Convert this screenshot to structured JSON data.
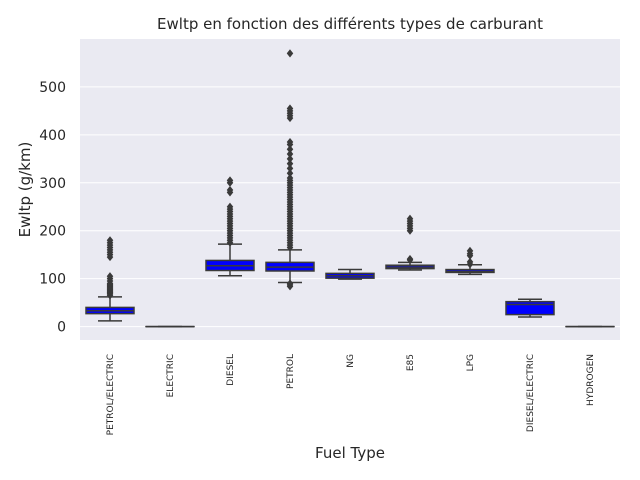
{
  "chart_data": {
    "type": "box",
    "title": "Ewltp en fonction des différents types de carburant",
    "xlabel": "Fuel Type",
    "ylabel": "Ewltp (g/km)",
    "ylim": [
      -28,
      600
    ],
    "yticks": [
      0,
      100,
      200,
      300,
      400,
      500
    ],
    "grid": true,
    "box_color": "#0000ff",
    "line_color": "#3a3a3a",
    "background": "#eaeaf2",
    "categories": [
      "PETROL/ELECTRIC",
      "ELECTRIC",
      "DIESEL",
      "PETROL",
      "NG",
      "E85",
      "LPG",
      "DIESEL/ELECTRIC",
      "HYDROGEN"
    ],
    "boxes": [
      {
        "category": "PETROL/ELECTRIC",
        "whislo": 12,
        "q1": 27,
        "med": 33,
        "q3": 40,
        "whishi": 62,
        "fliers": [
          65,
          68,
          70,
          72,
          74,
          76,
          78,
          80,
          82,
          84,
          86,
          88,
          90,
          95,
          100,
          105,
          145,
          150,
          155,
          160,
          165,
          170,
          175,
          180
        ]
      },
      {
        "category": "ELECTRIC",
        "whislo": 0,
        "q1": 0,
        "med": 0,
        "q3": 0,
        "whishi": 0,
        "fliers": []
      },
      {
        "category": "DIESEL",
        "whislo": 106,
        "q1": 117,
        "med": 127,
        "q3": 138,
        "whishi": 172,
        "fliers": [
          175,
          180,
          185,
          190,
          195,
          200,
          205,
          210,
          215,
          220,
          225,
          230,
          235,
          240,
          245,
          250,
          280,
          285,
          300,
          305
        ]
      },
      {
        "category": "PETROL",
        "whislo": 92,
        "q1": 116,
        "med": 124,
        "q3": 134,
        "whishi": 160,
        "fliers": [
          84,
          87,
          90,
          165,
          170,
          175,
          180,
          185,
          190,
          195,
          200,
          205,
          210,
          215,
          220,
          225,
          230,
          235,
          240,
          245,
          250,
          255,
          260,
          265,
          270,
          275,
          280,
          285,
          290,
          295,
          300,
          305,
          310,
          320,
          330,
          340,
          350,
          360,
          370,
          380,
          385,
          435,
          440,
          445,
          450,
          455,
          570
        ]
      },
      {
        "category": "NG",
        "whislo": 99,
        "q1": 101,
        "med": 106,
        "q3": 111,
        "whishi": 119,
        "fliers": []
      },
      {
        "category": "E85",
        "whislo": 118,
        "q1": 121,
        "med": 124,
        "q3": 128,
        "whishi": 134,
        "fliers": [
          139,
          141,
          200,
          205,
          210,
          215,
          220,
          225
        ]
      },
      {
        "category": "LPG",
        "whislo": 109,
        "q1": 113,
        "med": 115,
        "q3": 119,
        "whishi": 129,
        "fliers": [
          130,
          135,
          148,
          152,
          158
        ]
      },
      {
        "category": "DIESEL/ELECTRIC",
        "whislo": 20,
        "q1": 25,
        "med": 46,
        "q3": 52,
        "whishi": 57,
        "fliers": []
      },
      {
        "category": "HYDROGEN",
        "whislo": 0,
        "q1": 0,
        "med": 0,
        "q3": 0,
        "whishi": 0,
        "fliers": []
      }
    ]
  }
}
